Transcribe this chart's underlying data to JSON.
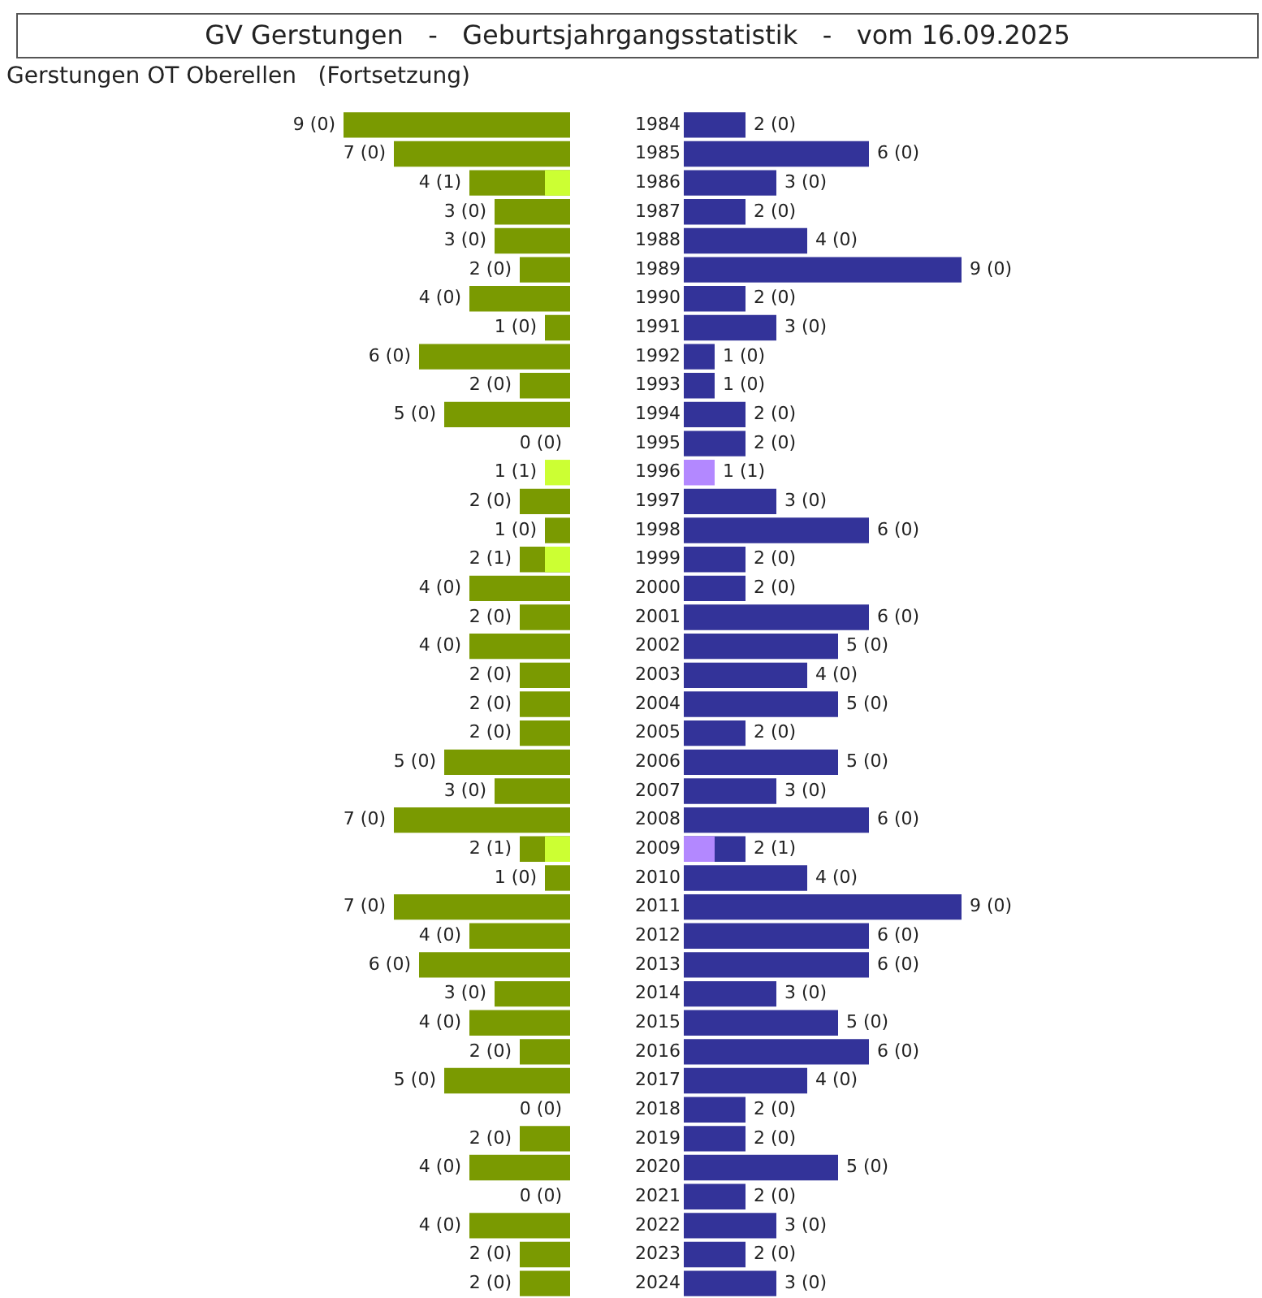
{
  "chart_data": [
    {
      "type": "bar",
      "orientation": "horizontal",
      "title": "GV Gerstungen   -   Geburtsjahrgangsstatistik   -   vom 16.09.2025",
      "subtitle": "Gerstungen OT Oberellen   (Fortsetzung)",
      "categories": [
        "1984",
        "1985",
        "1986",
        "1987",
        "1988",
        "1989",
        "1990",
        "1991",
        "1992",
        "1993",
        "1994",
        "1995",
        "1996",
        "1997",
        "1998",
        "1999",
        "2000",
        "2001",
        "2002",
        "2003",
        "2004",
        "2005",
        "2006",
        "2007",
        "2008",
        "2009",
        "2010",
        "2011",
        "2012",
        "2013",
        "2014",
        "2015",
        "2016",
        "2017",
        "2018",
        "2019",
        "2020",
        "2021",
        "2022",
        "2023",
        "2024"
      ],
      "tick_labels": false,
      "grid": false,
      "series": [
        {
          "color": "#ccff33",
          "values": [
            0,
            0,
            1,
            0,
            0,
            0,
            0,
            0,
            0,
            0,
            0,
            0,
            1,
            0,
            0,
            1,
            0,
            0,
            0,
            0,
            0,
            0,
            0,
            0,
            0,
            1,
            0,
            0,
            0,
            0,
            0,
            0,
            0,
            0,
            0,
            0,
            0,
            0,
            0,
            0,
            0
          ]
        },
        {
          "color": "#7a9a01",
          "values": [
            9,
            7,
            4,
            3,
            3,
            2,
            4,
            1,
            6,
            2,
            5,
            0,
            null,
            2,
            1,
            2,
            4,
            2,
            4,
            2,
            2,
            2,
            5,
            3,
            7,
            2,
            1,
            7,
            4,
            6,
            3,
            4,
            2,
            5,
            0,
            2,
            4,
            0,
            4,
            2,
            2
          ],
          "value_labels": [
            "9 (0)",
            "7 (0)",
            "4 (1)",
            "3 (0)",
            "3 (0)",
            "2 (0)",
            "4 (0)",
            "1 (0)",
            "6 (0)",
            "2 (0)",
            "5 (0)",
            "0 (0)",
            "1 (1)",
            "2 (0)",
            "1 (0)",
            "2 (1)",
            "4 (0)",
            "2 (0)",
            "4 (0)",
            "2 (0)",
            "2 (0)",
            "2 (0)",
            "5 (0)",
            "3 (0)",
            "7 (0)",
            "2 (1)",
            "1 (0)",
            "7 (0)",
            "4 (0)",
            "6 (0)",
            "3 (0)",
            "4 (0)",
            "2 (0)",
            "5 (0)",
            "0 (0)",
            "2 (0)",
            "4 (0)",
            "0 (0)",
            "4 (0)",
            "2 (0)",
            "2 (0)"
          ]
        }
      ]
    },
    {
      "type": "bar",
      "orientation": "horizontal",
      "categories": [
        "1984",
        "1985",
        "1986",
        "1987",
        "1988",
        "1989",
        "1990",
        "1991",
        "1992",
        "1993",
        "1994",
        "1995",
        "1996",
        "1997",
        "1998",
        "1999",
        "2000",
        "2001",
        "2002",
        "2003",
        "2004",
        "2005",
        "2006",
        "2007",
        "2008",
        "2009",
        "2010",
        "2011",
        "2012",
        "2013",
        "2014",
        "2015",
        "2016",
        "2017",
        "2018",
        "2019",
        "2020",
        "2021",
        "2022",
        "2023",
        "2024"
      ],
      "tick_labels": "y",
      "grid": false,
      "series": [
        {
          "color": "#b388ff",
          "values": [
            0,
            0,
            0,
            0,
            0,
            0,
            0,
            0,
            0,
            0,
            0,
            0,
            1,
            0,
            0,
            0,
            0,
            0,
            0,
            0,
            0,
            0,
            0,
            0,
            0,
            1,
            0,
            0,
            0,
            0,
            0,
            0,
            0,
            0,
            0,
            0,
            0,
            0,
            0,
            0,
            0
          ]
        },
        {
          "color": "#333399",
          "values": [
            2,
            6,
            3,
            2,
            4,
            9,
            2,
            3,
            1,
            1,
            2,
            2,
            null,
            3,
            6,
            2,
            2,
            6,
            5,
            4,
            5,
            2,
            5,
            3,
            6,
            2,
            4,
            9,
            6,
            6,
            3,
            5,
            6,
            4,
            2,
            2,
            5,
            2,
            3,
            2,
            3
          ],
          "value_labels": [
            "2 (0)",
            "6 (0)",
            "3 (0)",
            "2 (0)",
            "4 (0)",
            "9 (0)",
            "2 (0)",
            "3 (0)",
            "1 (0)",
            "1 (0)",
            "2 (0)",
            "2 (0)",
            "1 (1)",
            "3 (0)",
            "6 (0)",
            "2 (0)",
            "2 (0)",
            "6 (0)",
            "5 (0)",
            "4 (0)",
            "5 (0)",
            "2 (0)",
            "5 (0)",
            "3 (0)",
            "6 (0)",
            "2 (1)",
            "4 (0)",
            "9 (0)",
            "6 (0)",
            "6 (0)",
            "3 (0)",
            "5 (0)",
            "6 (0)",
            "4 (0)",
            "2 (0)",
            "2 (0)",
            "5 (0)",
            "2 (0)",
            "3 (0)",
            "2 (0)",
            "3 (0)"
          ]
        }
      ]
    }
  ]
}
